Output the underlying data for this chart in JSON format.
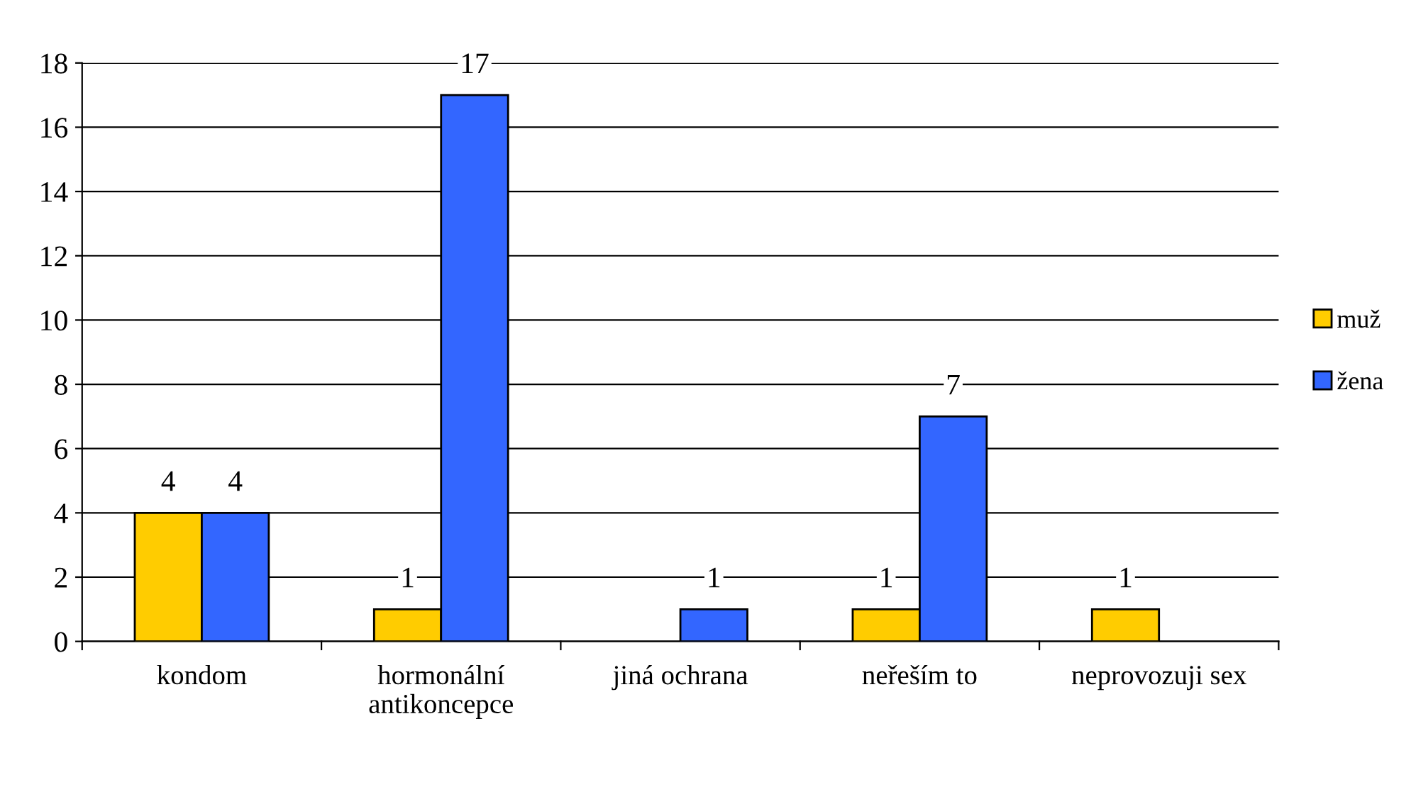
{
  "chart_data": {
    "type": "bar",
    "categories": [
      "kondom",
      "hormonální\nantikoncepce",
      "jiná ochrana",
      "neřeším to",
      "neprovozuji sex"
    ],
    "series": [
      {
        "name": "muž",
        "color": "#ffcc00",
        "values": [
          4,
          1,
          null,
          1,
          1
        ]
      },
      {
        "name": "žena",
        "color": "#3366ff",
        "values": [
          4,
          17,
          1,
          7,
          null
        ]
      }
    ],
    "ylim": [
      0,
      18
    ],
    "yticks": [
      0,
      2,
      4,
      6,
      8,
      10,
      12,
      14,
      16,
      18
    ],
    "grid": "y",
    "legend": "right",
    "data_labels": true
  }
}
